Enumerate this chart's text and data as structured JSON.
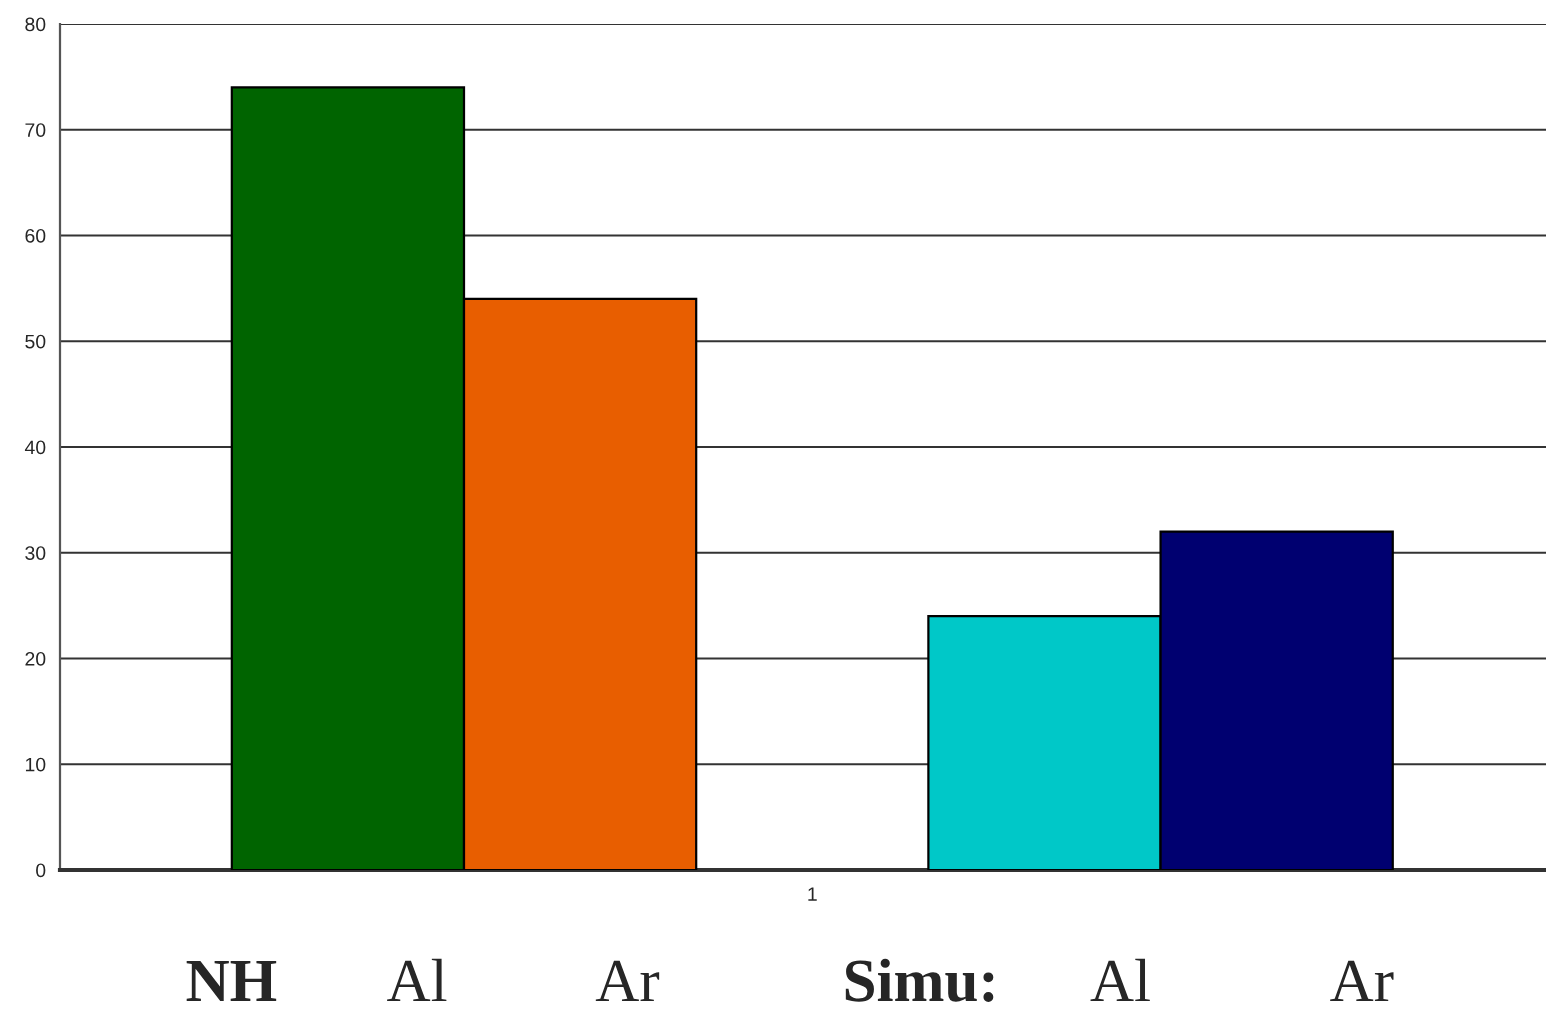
{
  "chart_data": {
    "type": "bar",
    "categories": [
      "1"
    ],
    "series": [
      {
        "color": "#006400",
        "values": [
          74
        ]
      },
      {
        "color": "#e85e00",
        "values": [
          54
        ]
      },
      {
        "color": "#00c8c8",
        "values": [
          24
        ]
      },
      {
        "color": "#000070",
        "values": [
          32
        ]
      }
    ],
    "ylim": [
      0,
      80
    ],
    "yticks": [
      0,
      10,
      20,
      30,
      40,
      50,
      60,
      70,
      80
    ],
    "grid": "y",
    "legend": false,
    "annotations": [
      "NH",
      "Al",
      "Ar",
      "Simu:",
      "Al",
      "Ar"
    ]
  }
}
